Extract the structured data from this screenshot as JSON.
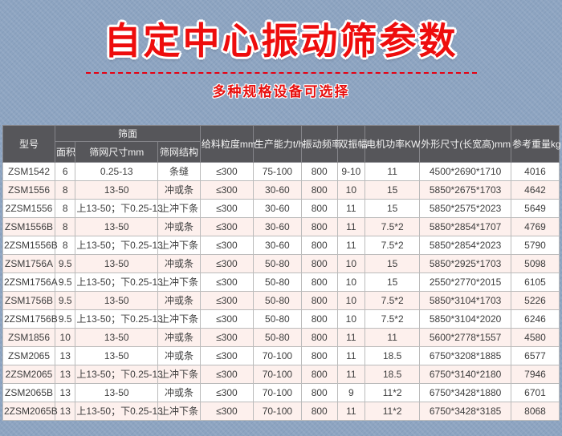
{
  "page": {
    "title": "自定中心振动筛参数",
    "subtitle": "多种规格设备可选择",
    "colors": {
      "title_red": "#ee0d0d",
      "divider_red": "#e60012",
      "header_bg": "#56565a",
      "row_alt_pink": "#fdf0ed",
      "background_blue": "#8da4c1"
    }
  },
  "table": {
    "header": {
      "model": "型号",
      "screen_surface": "筛面",
      "area": "面积",
      "mesh_size": "筛网尺寸mm",
      "mesh_structure": "筛网结构",
      "feed_size": "给料粒度mm",
      "capacity": "生产能力t/h",
      "frequency": "振动频率",
      "amplitude": "双振幅",
      "motor_power": "电机功率KW",
      "dimensions": "外形尺寸(长宽高)mm",
      "weight": "参考重量kg"
    },
    "rows": [
      [
        "ZSM1542",
        "6",
        "0.25-13",
        "条缝",
        "≤300",
        "75-100",
        "800",
        "9-10",
        "11",
        "4500*2690*1710",
        "4016"
      ],
      [
        "ZSM1556",
        "8",
        "13-50",
        "冲或条",
        "≤300",
        "30-60",
        "800",
        "10",
        "15",
        "5850*2675*1703",
        "4642"
      ],
      [
        "2ZSM1556",
        "8",
        "上13-50；下0.25-13",
        "上冲下条",
        "≤300",
        "30-60",
        "800",
        "11",
        "15",
        "5850*2575*2023",
        "5649"
      ],
      [
        "ZSM1556B",
        "8",
        "13-50",
        "冲或条",
        "≤300",
        "30-60",
        "800",
        "11",
        "7.5*2",
        "5850*2854*1707",
        "4769"
      ],
      [
        "2ZSM1556B",
        "8",
        "上13-50；下0.25-13",
        "上冲下条",
        "≤300",
        "30-60",
        "800",
        "11",
        "7.5*2",
        "5850*2854*2023",
        "5790"
      ],
      [
        "ZSM1756A",
        "9.5",
        "13-50",
        "冲或条",
        "≤300",
        "50-80",
        "800",
        "10",
        "15",
        "5850*2925*1703",
        "5098"
      ],
      [
        "2ZSM1756A",
        "9.5",
        "上13-50；下0.25-13",
        "上冲下条",
        "≤300",
        "50-80",
        "800",
        "10",
        "15",
        "2550*2770*2015",
        "6105"
      ],
      [
        "ZSM1756B",
        "9.5",
        "13-50",
        "冲或条",
        "≤300",
        "50-80",
        "800",
        "10",
        "7.5*2",
        "5850*3104*1703",
        "5226"
      ],
      [
        "2ZSM1756B",
        "9.5",
        "上13-50；下0.25-13",
        "上冲下条",
        "≤300",
        "50-80",
        "800",
        "10",
        "7.5*2",
        "5850*3104*2020",
        "6246"
      ],
      [
        "ZSM1856",
        "10",
        "13-50",
        "冲或条",
        "≤300",
        "50-80",
        "800",
        "11",
        "11",
        "5600*2778*1557",
        "4580"
      ],
      [
        "ZSM2065",
        "13",
        "13-50",
        "冲或条",
        "≤300",
        "70-100",
        "800",
        "11",
        "18.5",
        "6750*3208*1885",
        "6577"
      ],
      [
        "2ZSM2065",
        "13",
        "上13-50；下0.25-13",
        "上冲下条",
        "≤300",
        "70-100",
        "800",
        "11",
        "18.5",
        "6750*3140*2180",
        "7946"
      ],
      [
        "ZSM2065B",
        "13",
        "13-50",
        "冲或条",
        "≤300",
        "70-100",
        "800",
        "9",
        "11*2",
        "6750*3428*1880",
        "6701"
      ],
      [
        "2ZSM2065B",
        "13",
        "上13-50；下0.25-13",
        "上冲下条",
        "≤300",
        "70-100",
        "800",
        "11",
        "11*2",
        "6750*3428*3185",
        "8068"
      ]
    ]
  }
}
